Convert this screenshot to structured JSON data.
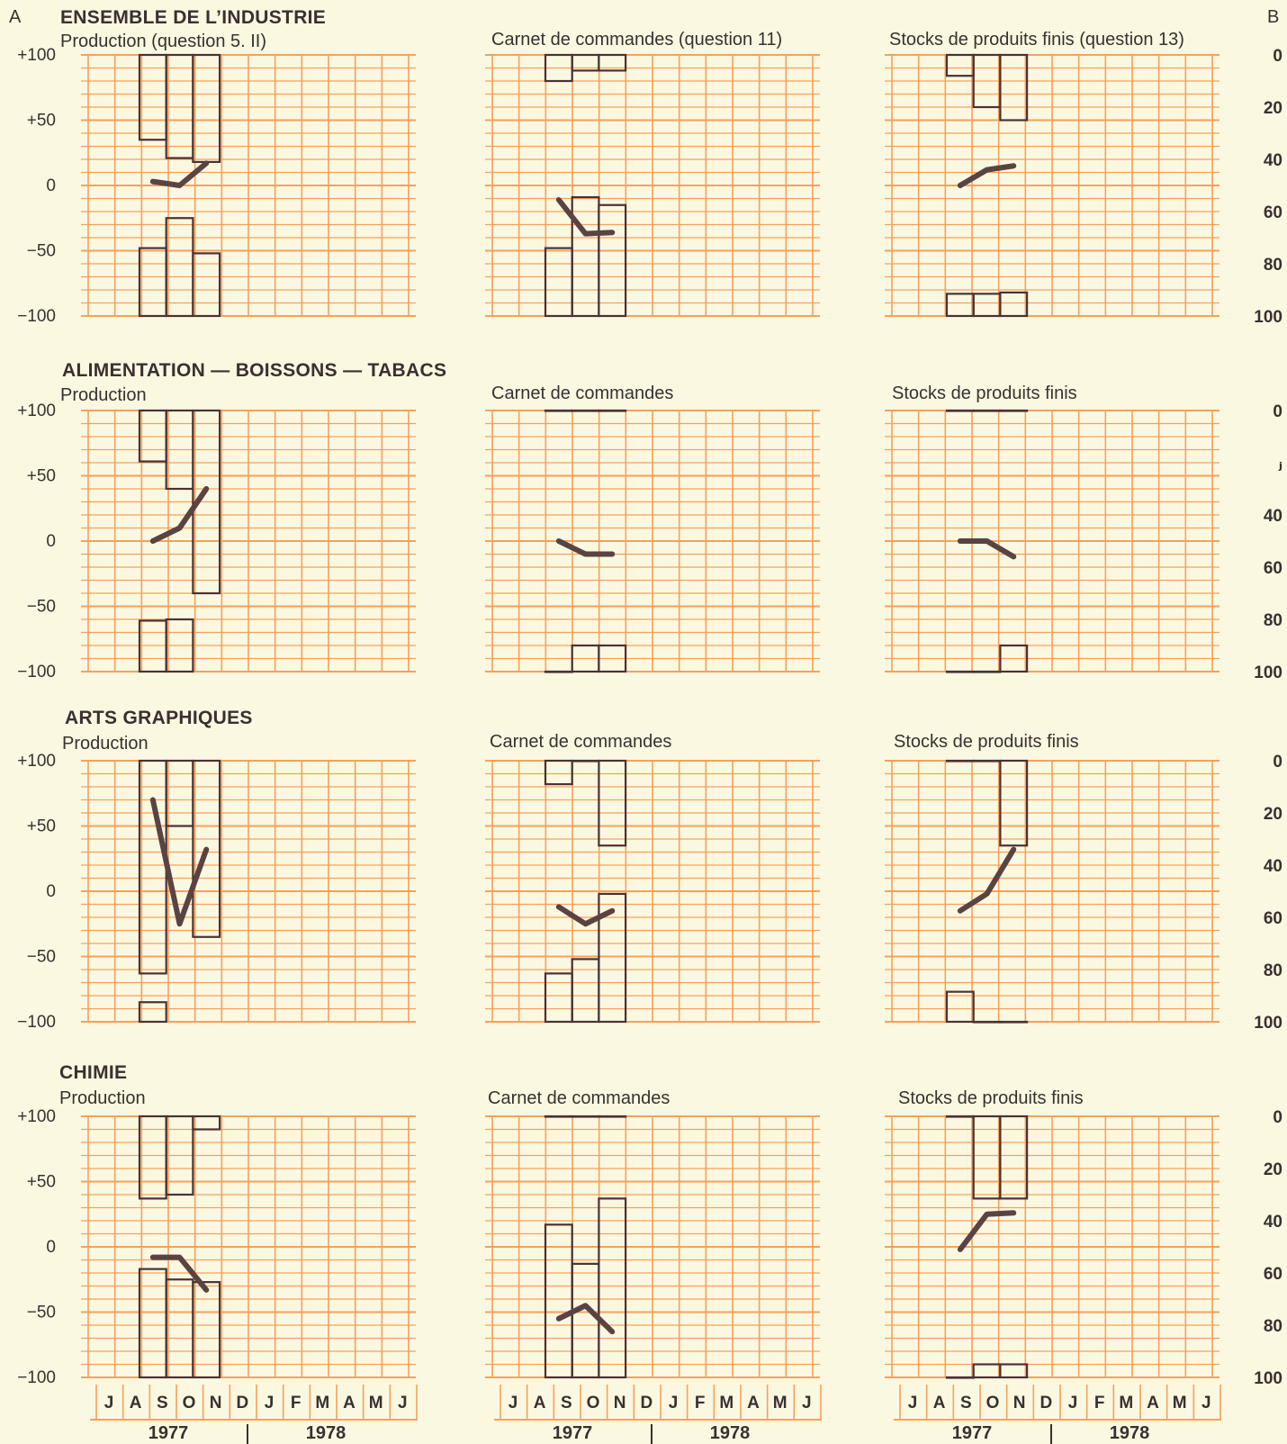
{
  "corner_left": "A",
  "corner_right": "B",
  "left_axis_ticks": [
    "+100",
    "+50",
    "0",
    "−50",
    "−100"
  ],
  "right_axis_ticks": [
    "0",
    "20",
    "40",
    "60",
    "80",
    "100"
  ],
  "right_axis_ticks_row2": [
    "0",
    "ⱼ",
    "40",
    "60",
    "80",
    "100"
  ],
  "months": [
    "J",
    "A",
    "S",
    "O",
    "N",
    "D",
    "J",
    "F",
    "M",
    "A",
    "M",
    "J"
  ],
  "years": [
    "1977",
    "1978"
  ],
  "sections": [
    {
      "title": "ENSEMBLE DE L’INDUSTRIE",
      "panels": [
        "Production (question 5. II)",
        "Carnet de commandes (question 11)",
        "Stocks de produits finis (question 13)"
      ]
    },
    {
      "title": "ALIMENTATION — BOISSONS — TABACS",
      "panels": [
        "Production",
        "Carnet de commandes",
        "Stocks de produits finis"
      ]
    },
    {
      "title": "ARTS GRAPHIQUES",
      "panels": [
        "Production",
        "Carnet de commandes",
        "Stocks de produits finis"
      ]
    },
    {
      "title": "CHIMIE",
      "panels": [
        "Production",
        "Carnet de commandes",
        "Stocks de produits finis"
      ]
    }
  ],
  "colors": {
    "background": "#fbf8e1",
    "grid": "#f6a15a",
    "bars": "#4a3232",
    "line": "#5a4343"
  },
  "chart_data": [
    {
      "type": "bar",
      "section": "ENSEMBLE DE L’INDUSTRIE",
      "panel": "Production (question 5. II)",
      "months": [
        "S",
        "O",
        "N"
      ],
      "positive_top": [
        100,
        100,
        100
      ],
      "positive_bottom": [
        35,
        21,
        18
      ],
      "negative_top": [
        -48,
        -25,
        -52
      ],
      "negative_bottom": [
        -100,
        -100,
        -100
      ],
      "line": [
        3,
        0,
        17
      ],
      "ylim": [
        -100,
        100
      ]
    },
    {
      "type": "bar",
      "section": "ENSEMBLE DE L’INDUSTRIE",
      "panel": "Carnet de commandes (question 11)",
      "months": [
        "S",
        "O",
        "N"
      ],
      "positive_top": [
        100,
        100,
        100
      ],
      "positive_bottom": [
        80,
        88,
        88
      ],
      "negative_top": [
        -48,
        -9,
        -15
      ],
      "negative_bottom": [
        -100,
        -100,
        -100
      ],
      "line": [
        -11,
        -37,
        -36
      ],
      "ylim": [
        -100,
        100
      ]
    },
    {
      "type": "bar",
      "section": "ENSEMBLE DE L’INDUSTRIE",
      "panel": "Stocks de produits finis (question 13)",
      "months": [
        "S",
        "O",
        "N"
      ],
      "positive_top": [
        100,
        100,
        100
      ],
      "positive_bottom": [
        84,
        60,
        50
      ],
      "negative_top": [
        -83,
        -83,
        -82
      ],
      "negative_bottom": [
        -100,
        -100,
        -100
      ],
      "line": [
        0,
        12,
        15
      ],
      "ylim": [
        -100,
        100
      ]
    },
    {
      "type": "bar",
      "section": "ALIMENTATION — BOISSONS — TABACS",
      "panel": "Production",
      "months": [
        "S",
        "O",
        "N"
      ],
      "positive_top": [
        100,
        100,
        100
      ],
      "positive_bottom": [
        61,
        40,
        -40
      ],
      "negative_top": [
        -61,
        -60,
        null
      ],
      "negative_bottom": [
        -100,
        -100,
        -100
      ],
      "line": [
        0,
        10,
        40
      ],
      "ylim": [
        -100,
        100
      ]
    },
    {
      "type": "bar",
      "section": "ALIMENTATION — BOISSONS — TABACS",
      "panel": "Carnet de commandes",
      "months": [
        "S",
        "O",
        "N"
      ],
      "positive_top": [
        100,
        100,
        100
      ],
      "positive_bottom": [
        100,
        100,
        100
      ],
      "negative_top": [
        -100,
        -80,
        -80
      ],
      "negative_bottom": [
        -100,
        -100,
        -100
      ],
      "line": [
        0,
        -10,
        -10
      ],
      "ylim": [
        -100,
        100
      ]
    },
    {
      "type": "bar",
      "section": "ALIMENTATION — BOISSONS — TABACS",
      "panel": "Stocks de produits finis",
      "months": [
        "S",
        "O",
        "N"
      ],
      "positive_top": [
        100,
        100,
        100
      ],
      "positive_bottom": [
        100,
        100,
        100
      ],
      "negative_top": [
        -100,
        -100,
        -80
      ],
      "negative_bottom": [
        -100,
        -100,
        -100
      ],
      "line": [
        0,
        0,
        -12
      ],
      "ylim": [
        -100,
        100
      ]
    },
    {
      "type": "bar",
      "section": "ARTS GRAPHIQUES",
      "panel": "Production",
      "months": [
        "S",
        "O",
        "N"
      ],
      "positive_top": [
        100,
        100,
        100
      ],
      "positive_bottom": [
        -63,
        50,
        -35
      ],
      "negative_top": [
        -85,
        null,
        null
      ],
      "negative_bottom": [
        -100,
        -100,
        -100
      ],
      "line": [
        70,
        -25,
        32
      ],
      "ylim": [
        -100,
        100
      ]
    },
    {
      "type": "bar",
      "section": "ARTS GRAPHIQUES",
      "panel": "Carnet de commandes",
      "months": [
        "S",
        "O",
        "N"
      ],
      "positive_top": [
        100,
        100,
        100
      ],
      "positive_bottom": [
        82,
        100,
        35
      ],
      "negative_top": [
        -63,
        -52,
        -2
      ],
      "negative_bottom": [
        -100,
        -100,
        -100
      ],
      "line": [
        -12,
        -25,
        -15
      ],
      "ylim": [
        -100,
        100
      ]
    },
    {
      "type": "bar",
      "section": "ARTS GRAPHIQUES",
      "panel": "Stocks de produits finis",
      "months": [
        "S",
        "O",
        "N"
      ],
      "positive_top": [
        100,
        100,
        100
      ],
      "positive_bottom": [
        100,
        100,
        35
      ],
      "negative_top": [
        -77,
        -100,
        -100
      ],
      "negative_bottom": [
        -100,
        -100,
        -100
      ],
      "line": [
        -15,
        -2,
        32
      ],
      "ylim": [
        -100,
        100
      ]
    },
    {
      "type": "bar",
      "section": "CHIMIE",
      "panel": "Production",
      "months": [
        "S",
        "O",
        "N"
      ],
      "positive_top": [
        100,
        100,
        100
      ],
      "positive_bottom": [
        37,
        40,
        90
      ],
      "negative_top": [
        -17,
        -25,
        -27
      ],
      "negative_bottom": [
        -100,
        -100,
        -100
      ],
      "line": [
        -8,
        -8,
        -33
      ],
      "ylim": [
        -100,
        100
      ]
    },
    {
      "type": "bar",
      "section": "CHIMIE",
      "panel": "Carnet de commandes",
      "months": [
        "S",
        "O",
        "N"
      ],
      "positive_top": [
        100,
        100,
        100
      ],
      "positive_bottom": [
        100,
        100,
        100
      ],
      "negative_top": [
        17,
        -13,
        37
      ],
      "negative_bottom": [
        -100,
        -100,
        -100
      ],
      "line": [
        -55,
        -45,
        -65
      ],
      "ylim": [
        -100,
        100
      ]
    },
    {
      "type": "bar",
      "section": "CHIMIE",
      "panel": "Stocks de produits finis",
      "months": [
        "S",
        "O",
        "N"
      ],
      "positive_top": [
        100,
        100,
        100
      ],
      "positive_bottom": [
        100,
        37,
        37
      ],
      "negative_top": [
        -100,
        -90,
        -90
      ],
      "negative_bottom": [
        -100,
        -100,
        -100
      ],
      "line": [
        -2,
        25,
        26
      ],
      "ylim": [
        -100,
        100
      ]
    }
  ]
}
